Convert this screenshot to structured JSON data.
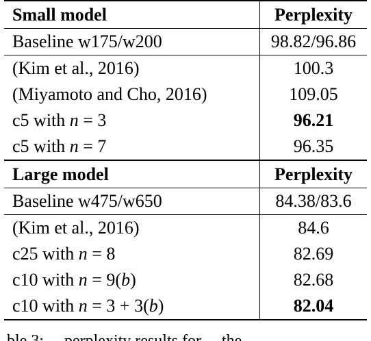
{
  "small": {
    "header": {
      "model": "Small model",
      "metric": "Perplexity"
    },
    "rows": [
      {
        "model": "Baseline w175/w200",
        "value": "98.82/96.86"
      },
      {
        "model": "(Kim et al., 2016)",
        "value": "100.3"
      },
      {
        "model": "(Miyamoto and Cho, 2016)",
        "value": "109.05"
      },
      {
        "model_prefix": "c5 with ",
        "math": "n",
        "math_rest": " = 3",
        "value": "96.21"
      },
      {
        "model_prefix": "c5 with ",
        "math": "n",
        "math_rest": " = 7",
        "value": "96.35"
      }
    ]
  },
  "large": {
    "header": {
      "model": "Large model",
      "metric": "Perplexity"
    },
    "rows": [
      {
        "model": "Baseline w475/w650",
        "value": "84.38/83.6"
      },
      {
        "model": "(Kim et al., 2016)",
        "value": "84.6"
      },
      {
        "model_prefix": "c25 with ",
        "math": "n",
        "math_rest": " = 8",
        "value": "82.69"
      },
      {
        "model_prefix": "c10 with ",
        "math": "n",
        "math_rest": " = 9(",
        "math2": "b",
        "math_rest2": ")",
        "value": "82.68"
      },
      {
        "model_prefix": "c10 with ",
        "math": "n",
        "math_rest": " = 3 + 3(",
        "math2": "b",
        "math_rest2": ")",
        "value": "82.04"
      }
    ]
  },
  "caption_fragment": "ble 3: ... perplexity results for ... the"
}
